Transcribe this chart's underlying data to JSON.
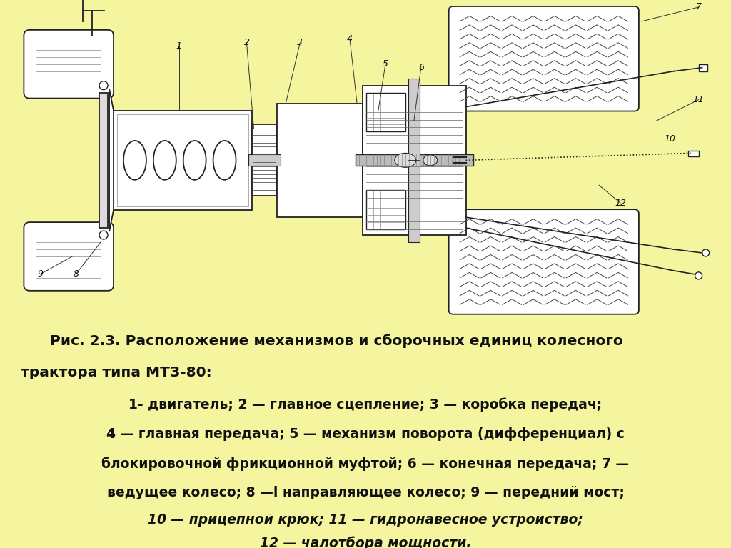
{
  "bg_color_top": "#f5f0d8",
  "bg_color_bottom": "#f5f5a0",
  "fig_width": 10.24,
  "fig_height": 7.67,
  "diagram_bg": "#fafaf5",
  "line_color": "#222222",
  "caption": {
    "line1": "  Рис. 2.3. Расположение механизмов и сборочных единиц колесного",
    "line2": "трактора типа МТЗ-80:",
    "line3": "1- двигатель; 2 — главное сцепление; 3 — коробка передач;",
    "line4": "4 — главная передача; 5 — механизм поворота (дифференциал) с",
    "line5": "блокировочной фрикционной муфтой; 6 — конечная передача; 7 —",
    "line6": "ведущее колесо; 8 —l направляющее колесо; 9 — передний мост;",
    "line7": "10 — прицепной крюк; 11 — гидронавесное устройство;",
    "line8": "12 — чалотбора мощности."
  }
}
